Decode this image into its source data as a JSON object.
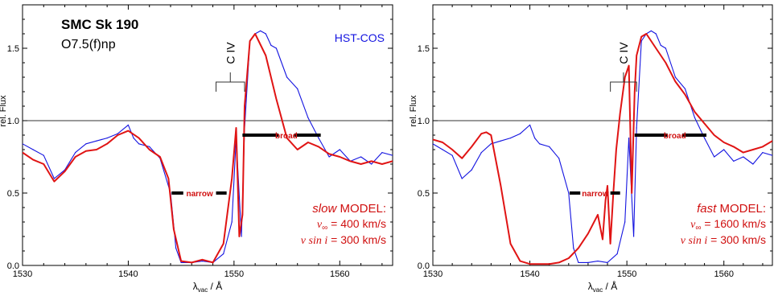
{
  "chart_data": [
    {
      "type": "line",
      "title": "SMC Sk 190",
      "subtitle": "O7.5(f)np",
      "instrument": "HST-COS",
      "xlabel": "λvac / Å",
      "ylabel": "rel. Flux",
      "xlim": [
        1530,
        1565
      ],
      "ylim": [
        0.0,
        1.8
      ],
      "xticks": [
        "1530",
        "1540",
        "1550",
        "1560"
      ],
      "yticks": [
        "0.0",
        "0.5",
        "1.0",
        "1.5"
      ],
      "reference_line": 1.0,
      "line_label": "C IV",
      "model": {
        "kind": "slow",
        "word": "MODEL:",
        "vinf": "= 400 km/s",
        "vsini": "= 300 km/s"
      },
      "markers": [
        {
          "label": "narrow",
          "y": 0.5,
          "segments": [
            [
              1544.1,
              1545.2
            ],
            [
              1548.3,
              1549.3
            ]
          ]
        },
        {
          "label": "broad",
          "y": 0.9,
          "segments": [
            [
              1550.8,
              1554.2
            ],
            [
              1555.7,
              1558.2
            ]
          ]
        }
      ],
      "series": [
        {
          "color": "#1414e0",
          "x": [
            1530,
            1531,
            1532,
            1533,
            1534,
            1535,
            1536,
            1537,
            1538,
            1539,
            1540,
            1540.5,
            1541,
            1542,
            1543,
            1544,
            1544.5,
            1545,
            1546,
            1547,
            1548,
            1549,
            1549.8,
            1550.2,
            1550.7,
            1551,
            1551.5,
            1552,
            1552.5,
            1553,
            1553.5,
            1554,
            1555,
            1556,
            1557,
            1558,
            1559,
            1560,
            1561,
            1562,
            1563,
            1564,
            1565
          ],
          "y": [
            0.84,
            0.8,
            0.76,
            0.6,
            0.66,
            0.78,
            0.84,
            0.86,
            0.88,
            0.91,
            0.97,
            0.88,
            0.84,
            0.82,
            0.74,
            0.5,
            0.12,
            0.02,
            0.02,
            0.03,
            0.02,
            0.08,
            0.3,
            0.88,
            0.2,
            0.95,
            1.55,
            1.6,
            1.62,
            1.6,
            1.52,
            1.5,
            1.3,
            1.22,
            1.02,
            0.88,
            0.75,
            0.8,
            0.72,
            0.75,
            0.7,
            0.78,
            0.76
          ]
        },
        {
          "color": "#e01414",
          "x": [
            1530,
            1531,
            1532,
            1533,
            1534,
            1535,
            1536,
            1537,
            1538,
            1539,
            1540,
            1541,
            1542,
            1543,
            1543.8,
            1544.3,
            1545,
            1546,
            1547,
            1548,
            1549,
            1549.8,
            1550.2,
            1550.5,
            1550.8,
            1551,
            1551.5,
            1552,
            1553,
            1554,
            1555,
            1556,
            1557,
            1558,
            1559,
            1560,
            1561,
            1562,
            1563,
            1564,
            1565
          ],
          "y": [
            0.78,
            0.73,
            0.7,
            0.58,
            0.65,
            0.75,
            0.79,
            0.8,
            0.84,
            0.9,
            0.93,
            0.88,
            0.8,
            0.75,
            0.6,
            0.25,
            0.03,
            0.02,
            0.04,
            0.02,
            0.15,
            0.6,
            0.95,
            0.2,
            0.35,
            1.1,
            1.55,
            1.6,
            1.45,
            1.15,
            0.88,
            0.8,
            0.85,
            0.82,
            0.77,
            0.75,
            0.72,
            0.7,
            0.72,
            0.7,
            0.72
          ]
        }
      ]
    },
    {
      "type": "line",
      "xlabel": "λvac / Å",
      "ylabel": "rel. Flux",
      "xlim": [
        1530,
        1565
      ],
      "ylim": [
        0.0,
        1.8
      ],
      "xticks": [
        "1530",
        "1540",
        "1550",
        "1560"
      ],
      "yticks": [
        "0.0",
        "0.5",
        "1.0",
        "1.5"
      ],
      "reference_line": 1.0,
      "line_label": "C IV",
      "model": {
        "kind": "fast",
        "word": "MODEL:",
        "vinf": "= 1600 km/s",
        "vsini": "= 300 km/s"
      },
      "markers": [
        {
          "label": "narrow",
          "y": 0.5,
          "segments": [
            [
              1544.1,
              1545.2
            ],
            [
              1548.3,
              1549.3
            ]
          ]
        },
        {
          "label": "broad",
          "y": 0.9,
          "segments": [
            [
              1550.8,
              1554.2
            ],
            [
              1555.7,
              1558.2
            ]
          ]
        }
      ],
      "series": [
        {
          "color": "#1414e0",
          "x": [
            1530,
            1531,
            1532,
            1533,
            1534,
            1535,
            1536,
            1537,
            1538,
            1539,
            1540,
            1540.5,
            1541,
            1542,
            1543,
            1544,
            1544.5,
            1545,
            1546,
            1547,
            1548,
            1549,
            1549.8,
            1550.2,
            1550.7,
            1551,
            1551.5,
            1552,
            1552.5,
            1553,
            1553.5,
            1554,
            1555,
            1556,
            1557,
            1558,
            1559,
            1560,
            1561,
            1562,
            1563,
            1564,
            1565
          ],
          "y": [
            0.84,
            0.8,
            0.76,
            0.6,
            0.66,
            0.78,
            0.84,
            0.86,
            0.88,
            0.91,
            0.97,
            0.88,
            0.84,
            0.82,
            0.74,
            0.5,
            0.12,
            0.02,
            0.02,
            0.03,
            0.02,
            0.08,
            0.3,
            0.88,
            0.2,
            0.95,
            1.55,
            1.6,
            1.62,
            1.6,
            1.52,
            1.5,
            1.3,
            1.22,
            1.02,
            0.88,
            0.75,
            0.8,
            0.72,
            0.75,
            0.7,
            0.78,
            0.76
          ]
        },
        {
          "color": "#e01414",
          "x": [
            1530,
            1531,
            1532,
            1533,
            1534,
            1535,
            1535.5,
            1536,
            1537,
            1538,
            1539,
            1540,
            1541,
            1542,
            1543,
            1544,
            1545,
            1546,
            1547,
            1547.5,
            1547.8,
            1548,
            1548.3,
            1548.6,
            1548.9,
            1549.3,
            1549.8,
            1550.2,
            1550.5,
            1550.8,
            1551,
            1551.5,
            1552,
            1553,
            1554,
            1555,
            1556,
            1557,
            1558,
            1559,
            1560,
            1561,
            1562,
            1563,
            1564,
            1565
          ],
          "y": [
            0.87,
            0.85,
            0.8,
            0.74,
            0.82,
            0.91,
            0.92,
            0.9,
            0.55,
            0.15,
            0.03,
            0.01,
            0.01,
            0.01,
            0.02,
            0.05,
            0.12,
            0.22,
            0.35,
            0.18,
            0.45,
            0.55,
            0.15,
            0.5,
            0.8,
            1.05,
            1.3,
            1.38,
            0.5,
            1.2,
            1.45,
            1.58,
            1.6,
            1.5,
            1.4,
            1.27,
            1.18,
            1.06,
            0.98,
            0.9,
            0.85,
            0.82,
            0.78,
            0.8,
            0.82,
            0.86
          ]
        }
      ]
    }
  ]
}
